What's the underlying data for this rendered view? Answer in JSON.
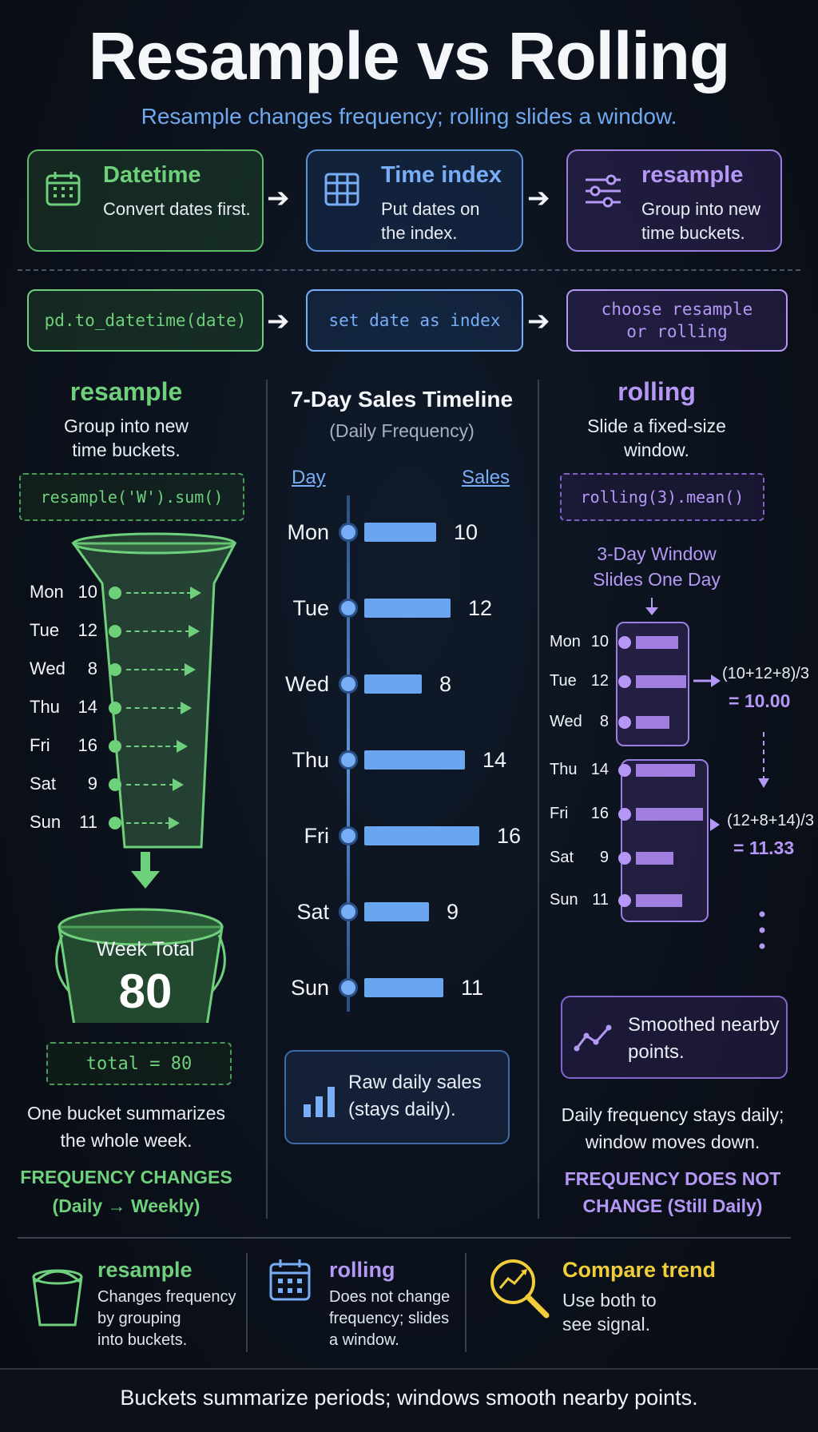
{
  "header": {
    "title": "Resample vs Rolling",
    "subtitle": "Resample changes frequency; rolling slides a window."
  },
  "steps": [
    {
      "title": "Datetime",
      "desc": [
        "Convert dates first."
      ],
      "icon": "calendar-icon",
      "code": [
        "pd.to_datetime(date)"
      ]
    },
    {
      "title": "Time index",
      "desc": [
        "Put dates on",
        "the index."
      ],
      "icon": "table-icon",
      "code": [
        "set date as index"
      ]
    },
    {
      "title": "resample",
      "desc": [
        "Group into new",
        "time buckets."
      ],
      "icon": "sliders-icon",
      "code": [
        "choose resample",
        "or rolling"
      ]
    }
  ],
  "resample": {
    "title": "resample",
    "subtitle": [
      "Group into new",
      "time buckets."
    ],
    "code": "resample('W').sum()",
    "bucket_label": "Week Total",
    "bucket_value": "80",
    "total_code": "total = 80",
    "note": [
      "One bucket summarizes",
      "the whole week."
    ],
    "freq": [
      "FREQUENCY CHANGES",
      "(Daily → Weekly)"
    ]
  },
  "timeline": {
    "title": "7-Day Sales Timeline",
    "subtitle": "(Daily Frequency)",
    "col_day": "Day",
    "col_sales": "Sales",
    "note": [
      "Raw daily sales",
      "(stays daily)."
    ]
  },
  "chart_data": {
    "type": "bar",
    "categories": [
      "Mon",
      "Tue",
      "Wed",
      "Thu",
      "Fri",
      "Sat",
      "Sun"
    ],
    "values": [
      10,
      12,
      8,
      14,
      16,
      9,
      11
    ],
    "xlabel": "Day",
    "ylabel": "Sales"
  },
  "rolling": {
    "title": "rolling",
    "subtitle": [
      "Slide a fixed-size",
      "window."
    ],
    "code": "rolling(3).mean()",
    "window_label": [
      "3-Day Window",
      "Slides One Day"
    ],
    "calc1": [
      "(10+12+8)/3",
      "= 10.00"
    ],
    "calc2": [
      "(12+8+14)/3",
      "= 11.33"
    ],
    "smoothed": [
      "Smoothed nearby",
      "points."
    ],
    "note": [
      "Daily frequency stays daily;",
      "window moves down."
    ],
    "freq": [
      "FREQUENCY DOES NOT",
      "CHANGE (Still Daily)"
    ]
  },
  "legend": [
    {
      "title": "resample",
      "desc": [
        "Changes frequency",
        "by grouping",
        "into buckets."
      ],
      "icon": "bucket-icon"
    },
    {
      "title": "rolling",
      "desc": [
        "Does not change",
        "frequency; slides",
        "a window."
      ],
      "icon": "calendar-icon"
    },
    {
      "title": "Compare trend",
      "desc": [
        "Use both to",
        "see signal."
      ],
      "icon": "magnifier-trend-icon"
    }
  ],
  "footer": "Buckets summarize periods; windows smooth nearby points.",
  "colors": {
    "green": "#6fd07c",
    "blue": "#78aef5",
    "purple": "#b598f5",
    "yellow": "#f2cd3a",
    "background": "#0a0f18"
  }
}
